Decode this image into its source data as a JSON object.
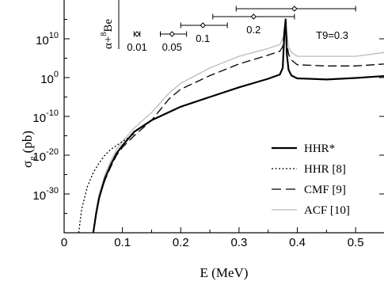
{
  "chart_data": {
    "type": "line",
    "xlabel": "E (MeV)",
    "ylabel_main": "σ",
    "ylabel_sub": "g",
    "ylabel_unit": "(pb)",
    "xlim": [
      0,
      0.55
    ],
    "ylim_log10": [
      -40,
      20
    ],
    "y_scale": "log",
    "grid": false,
    "x_ticks": [
      {
        "value": 0,
        "label": "0"
      },
      {
        "value": 0.1,
        "label": "0.1"
      },
      {
        "value": 0.2,
        "label": "0.2"
      },
      {
        "value": 0.3,
        "label": "0.3"
      },
      {
        "value": 0.4,
        "label": "0.4"
      },
      {
        "value": 0.5,
        "label": "0.5"
      }
    ],
    "y_ticks": [
      {
        "value": 10,
        "base": "10",
        "exp": "10"
      },
      {
        "value": 0,
        "base": "10",
        "exp": "0"
      },
      {
        "value": -10,
        "base": "10",
        "exp": "-10"
      },
      {
        "value": -20,
        "base": "10",
        "exp": "-20"
      },
      {
        "value": -30,
        "base": "10",
        "exp": "-30"
      }
    ],
    "reaction_label": {
      "text": "α+",
      "sup": "8",
      "tail": "Be"
    },
    "gamow_windows": [
      {
        "label": "0.01",
        "center": 0.125,
        "low": 0.12,
        "high": 0.13
      },
      {
        "label": "0.05",
        "center": 0.185,
        "low": 0.165,
        "high": 0.21
      },
      {
        "label": "0.1",
        "center": 0.238,
        "low": 0.2,
        "high": 0.28
      },
      {
        "label": "0.2",
        "center": 0.325,
        "low": 0.255,
        "high": 0.395
      },
      {
        "label": "T9=0.3",
        "center": 0.395,
        "low": 0.295,
        "high": 0.5
      }
    ],
    "legend_position": "lower-right",
    "series": [
      {
        "name": "HHR*",
        "style": "solid",
        "color": "#000000",
        "x": [
          0.05,
          0.055,
          0.06,
          0.07,
          0.08,
          0.09,
          0.1,
          0.12,
          0.15,
          0.2,
          0.25,
          0.3,
          0.35,
          0.37,
          0.375,
          0.378,
          0.38,
          0.382,
          0.385,
          0.39,
          0.4,
          0.42,
          0.45,
          0.5,
          0.55
        ],
        "y": [
          -40,
          -35,
          -31,
          -26,
          -22.5,
          -19.5,
          -17.5,
          -14,
          -11,
          -7.5,
          -5,
          -2.5,
          -0.3,
          0.8,
          2.5,
          12,
          15,
          6,
          2,
          0.5,
          -0.2,
          -0.3,
          -0.5,
          -0.1,
          0.4
        ]
      },
      {
        "name": "HHR [8]",
        "style": "dotted",
        "color": "#000000",
        "x": [
          0.025,
          0.03,
          0.04,
          0.05,
          0.06,
          0.07,
          0.08,
          0.1,
          0.12
        ],
        "y": [
          -40,
          -34,
          -28,
          -24.5,
          -22,
          -20,
          -18.5,
          -16.5,
          -14.5
        ]
      },
      {
        "name": "CMF [9]",
        "style": "dashed",
        "color": "#000000",
        "x": [
          0.05,
          0.055,
          0.06,
          0.07,
          0.08,
          0.09,
          0.1,
          0.12,
          0.15,
          0.18,
          0.2,
          0.25,
          0.3,
          0.35,
          0.37,
          0.375,
          0.378,
          0.38,
          0.382,
          0.385,
          0.39,
          0.4,
          0.45,
          0.5,
          0.55
        ],
        "y": [
          -40,
          -35,
          -31,
          -26.5,
          -23,
          -20,
          -18,
          -15,
          -11,
          -5.5,
          -3,
          0.5,
          3.5,
          5.8,
          6.8,
          8,
          12,
          15,
          9,
          6,
          4.5,
          3.3,
          3,
          3,
          3.5
        ]
      },
      {
        "name": "ACF [10]",
        "style": "solid",
        "color": "#bbbbbb",
        "x": [
          0.05,
          0.055,
          0.06,
          0.07,
          0.08,
          0.09,
          0.1,
          0.12,
          0.15,
          0.18,
          0.2,
          0.25,
          0.3,
          0.35,
          0.37,
          0.375,
          0.38,
          0.385,
          0.39,
          0.4,
          0.45,
          0.5,
          0.55
        ],
        "y": [
          -40,
          -34,
          -30,
          -25,
          -21.5,
          -18.5,
          -16.5,
          -13,
          -9,
          -4,
          -1.5,
          2.5,
          5.5,
          7.5,
          8.5,
          10,
          14,
          8,
          6.5,
          5.5,
          5.5,
          5.5,
          6.5
        ]
      }
    ]
  }
}
